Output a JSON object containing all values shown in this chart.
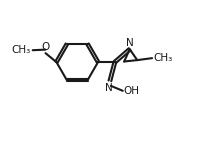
{
  "background_color": "#ffffff",
  "line_color": "#1a1a1a",
  "line_width": 1.5,
  "font_size": 7.5,
  "figsize": [
    2.02,
    1.44
  ],
  "dpi": 100,
  "xlim": [
    0,
    10
  ],
  "ylim": [
    0,
    7.2
  ]
}
